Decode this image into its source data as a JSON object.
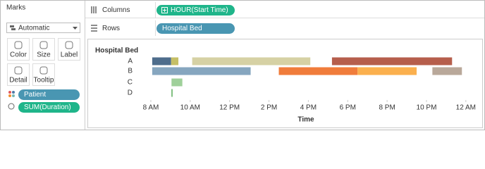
{
  "marks_panel": {
    "title": "Marks",
    "mark_type": "Automatic",
    "buttons": [
      "Color",
      "Size",
      "Label",
      "Detail",
      "Tooltip"
    ],
    "pills": [
      "Patient",
      "SUM(Duration)"
    ]
  },
  "shelves": {
    "columns": {
      "label": "Columns",
      "pill": "HOUR(Start Time)"
    },
    "rows": {
      "label": "Rows",
      "pill": "Hospital Bed"
    }
  },
  "chart_data": {
    "type": "gantt",
    "row_header": "Hospital Bed",
    "xlabel": "Time",
    "categories": [
      "A",
      "B",
      "C",
      "D"
    ],
    "xlim": [
      7.5,
      24.4
    ],
    "xticks": [
      {
        "value": 8,
        "label": "8 AM"
      },
      {
        "value": 10,
        "label": "10 AM"
      },
      {
        "value": 12,
        "label": "12 PM"
      },
      {
        "value": 14,
        "label": "2 PM"
      },
      {
        "value": 16,
        "label": "4 PM"
      },
      {
        "value": 18,
        "label": "6 PM"
      },
      {
        "value": 20,
        "label": "8 PM"
      },
      {
        "value": 22,
        "label": "10 PM"
      },
      {
        "value": 24,
        "label": "12 AM"
      }
    ],
    "bars": [
      {
        "row": "A",
        "start": 8.07,
        "duration": 0.96,
        "color": "#4e6d8c"
      },
      {
        "row": "A",
        "start": 9.03,
        "duration": 0.37,
        "color": "#c5bf66"
      },
      {
        "row": "A",
        "start": 10.1,
        "duration": 6.0,
        "color": "#d6d1a4"
      },
      {
        "row": "A",
        "start": 17.2,
        "duration": 6.1,
        "color": "#b65e4c"
      },
      {
        "row": "B",
        "start": 8.07,
        "duration": 5.0,
        "color": "#86a6bf"
      },
      {
        "row": "B",
        "start": 14.5,
        "duration": 4.0,
        "color": "#f07c3b"
      },
      {
        "row": "B",
        "start": 18.5,
        "duration": 3.0,
        "color": "#fbb04e"
      },
      {
        "row": "B",
        "start": 22.3,
        "duration": 1.5,
        "color": "#b9a89a"
      },
      {
        "row": "C",
        "start": 9.05,
        "duration": 0.55,
        "color": "#9fd09a"
      },
      {
        "row": "D",
        "start": 9.04,
        "duration": 0.07,
        "color": "#7fbf7f"
      }
    ]
  }
}
